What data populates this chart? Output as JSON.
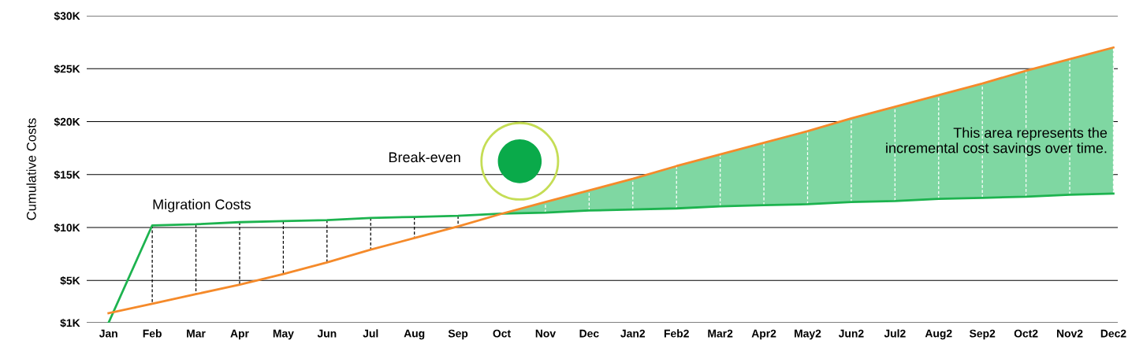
{
  "chart_data": {
    "type": "line",
    "ylabel": "Cumulative Costs",
    "categories": [
      "Jan",
      "Feb",
      "Mar",
      "Apr",
      "May",
      "Jun",
      "Jul",
      "Aug",
      "Sep",
      "Oct",
      "Nov",
      "Dec",
      "Jan2",
      "Feb2",
      "Mar2",
      "Apr2",
      "May2",
      "Jun2",
      "Jul2",
      "Aug2",
      "Sep2",
      "Oct2",
      "Nov2",
      "Dec2"
    ],
    "series": [
      {
        "color": "#1db34f",
        "values": [
          1000,
          10200,
          10300,
          10500,
          10600,
          10700,
          10900,
          11000,
          11100,
          11300,
          11400,
          11600,
          11700,
          11800,
          12000,
          12100,
          12200,
          12400,
          12500,
          12700,
          12800,
          12900,
          13100,
          13200
        ]
      },
      {
        "color": "#f58a2a",
        "values": [
          1900,
          2800,
          3700,
          4600,
          5600,
          6700,
          7900,
          9000,
          10100,
          11300,
          12400,
          13500,
          14600,
          15800,
          16900,
          18000,
          19100,
          20300,
          21400,
          22500,
          23600,
          24800,
          25900,
          27000
        ],
        "lower": [
          null,
          null,
          null,
          null,
          null,
          null,
          null,
          null,
          null,
          11300,
          11400,
          11600,
          11700,
          11800,
          12000,
          12100,
          12200,
          12400,
          12500,
          12700,
          12800,
          12900,
          13100,
          13200
        ],
        "upper": [
          null,
          null,
          null,
          null,
          null,
          null,
          null,
          null,
          null,
          11300,
          12400,
          13500,
          14600,
          15800,
          16900,
          18000,
          19100,
          20300,
          21400,
          22500,
          23600,
          24800,
          25900,
          27000
        ]
      }
    ],
    "ylim": [
      1000,
      30000
    ],
    "yticks": [
      {
        "value": 1000,
        "label": "$1K"
      },
      {
        "value": 5000,
        "label": "$5K"
      },
      {
        "value": 10000,
        "label": "$10K"
      },
      {
        "value": 15000,
        "label": "$15K"
      },
      {
        "value": 20000,
        "label": "$20K"
      },
      {
        "value": 25000,
        "label": "$25K"
      },
      {
        "value": 30000,
        "label": "$30K"
      }
    ],
    "grid": "y",
    "legend": false,
    "marker": "none",
    "line_style": "solid",
    "annotations": [
      {
        "text": "Migration Costs",
        "x": "Feb",
        "y": 10200
      },
      "Break-even",
      "This area represents the\nincremental cost savings over time."
    ]
  }
}
